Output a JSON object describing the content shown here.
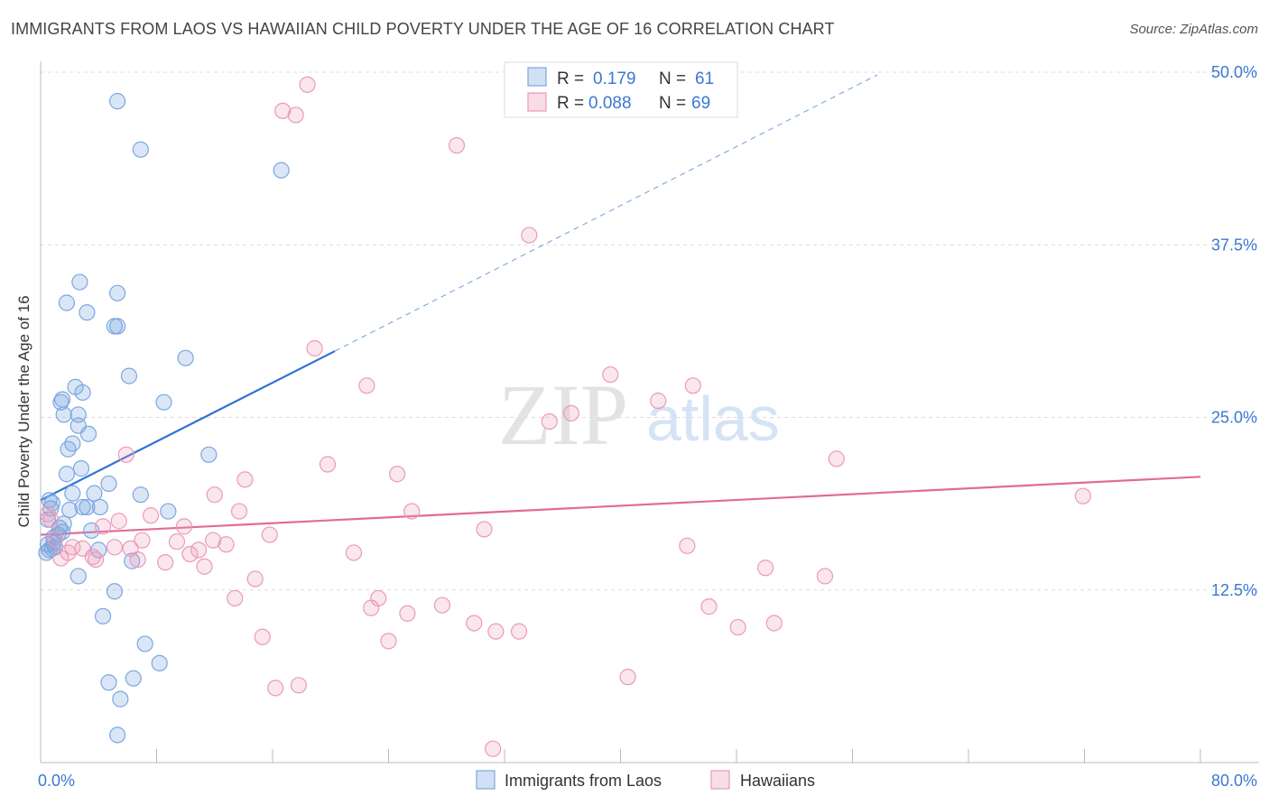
{
  "title": "IMMIGRANTS FROM LAOS VS HAWAIIAN CHILD POVERTY UNDER THE AGE OF 16 CORRELATION CHART",
  "source": "Source: ZipAtlas.com",
  "watermark": {
    "zip": "ZIP",
    "atlas": "atlas"
  },
  "colors": {
    "blue": "#7ba7e0",
    "blue_fill": "rgba(123,167,224,0.28)",
    "blue_line": "#2f74d0",
    "pink": "#eb9ab8",
    "pink_fill": "rgba(235,154,184,0.25)",
    "pink_line": "#e06c96",
    "value_text": "#3b78d0"
  },
  "legend_stats": [
    {
      "r_label": "R =",
      "r_value": "0.179",
      "n_label": "N =",
      "n_value": "61"
    },
    {
      "r_label": "R =",
      "r_value": "0.088",
      "n_label": "N =",
      "n_value": "69"
    }
  ],
  "chart_data": {
    "type": "scatter",
    "title": "IMMIGRANTS FROM LAOS VS HAWAIIAN CHILD POVERTY UNDER THE AGE OF 16 CORRELATION CHART",
    "xlabel": "",
    "ylabel": "Child Poverty Under the Age of 16",
    "xlim": [
      0,
      80
    ],
    "ylim": [
      0,
      50
    ],
    "x_tick_labels": [
      {
        "value": 0,
        "label": "0.0%"
      },
      {
        "value": 80,
        "label": "80.0%"
      }
    ],
    "y_tick_labels": [
      {
        "value": 12.5,
        "label": "12.5%"
      },
      {
        "value": 25,
        "label": "25.0%"
      },
      {
        "value": 37.5,
        "label": "37.5%"
      },
      {
        "value": 50,
        "label": "50.0%"
      }
    ],
    "grid": true,
    "legend_position": "bottom-center",
    "series": [
      {
        "name": "Immigrants from Laos",
        "color": "blue",
        "trend": {
          "x": [
            0,
            20.3
          ],
          "y": [
            19.0,
            29.8
          ],
          "dashed_to": [
            57.7,
            49.8
          ]
        },
        "points": [
          [
            0.4,
            15.2
          ],
          [
            0.6,
            15.4
          ],
          [
            0.5,
            15.8
          ],
          [
            0.8,
            15.5
          ],
          [
            1.0,
            15.6
          ],
          [
            0.9,
            16.3
          ],
          [
            0.5,
            17.6
          ],
          [
            0.7,
            18.4
          ],
          [
            0.6,
            19.0
          ],
          [
            0.8,
            18.8
          ],
          [
            1.3,
            17.0
          ],
          [
            1.5,
            16.7
          ],
          [
            1.2,
            16.5
          ],
          [
            1.6,
            17.3
          ],
          [
            2.0,
            18.3
          ],
          [
            1.8,
            20.9
          ],
          [
            2.2,
            19.5
          ],
          [
            2.9,
            18.5
          ],
          [
            3.2,
            18.5
          ],
          [
            4.1,
            18.5
          ],
          [
            3.7,
            19.5
          ],
          [
            4.7,
            20.2
          ],
          [
            2.8,
            21.3
          ],
          [
            1.9,
            22.7
          ],
          [
            2.2,
            23.1
          ],
          [
            3.3,
            23.8
          ],
          [
            2.6,
            24.4
          ],
          [
            2.6,
            25.2
          ],
          [
            1.6,
            25.2
          ],
          [
            1.4,
            26.1
          ],
          [
            1.5,
            26.3
          ],
          [
            2.9,
            26.8
          ],
          [
            2.4,
            27.2
          ],
          [
            6.1,
            28.0
          ],
          [
            10.0,
            29.3
          ],
          [
            6.9,
            19.4
          ],
          [
            8.8,
            18.2
          ],
          [
            5.3,
            34.0
          ],
          [
            5.3,
            31.6
          ],
          [
            5.1,
            31.6
          ],
          [
            3.2,
            32.6
          ],
          [
            1.8,
            33.3
          ],
          [
            2.7,
            34.8
          ],
          [
            5.3,
            47.9
          ],
          [
            6.9,
            44.4
          ],
          [
            16.6,
            42.9
          ],
          [
            8.5,
            26.1
          ],
          [
            11.6,
            22.3
          ],
          [
            3.5,
            16.8
          ],
          [
            4.0,
            15.4
          ],
          [
            6.3,
            14.6
          ],
          [
            2.6,
            13.5
          ],
          [
            5.1,
            12.4
          ],
          [
            4.3,
            10.6
          ],
          [
            7.2,
            8.6
          ],
          [
            8.2,
            7.2
          ],
          [
            4.7,
            5.8
          ],
          [
            6.4,
            6.1
          ],
          [
            5.5,
            4.6
          ],
          [
            5.3,
            2.0
          ],
          [
            0.9,
            15.9
          ]
        ]
      },
      {
        "name": "Hawaiians",
        "color": "pink",
        "trend": {
          "x": [
            0,
            80
          ],
          "y": [
            16.5,
            20.7
          ]
        },
        "points": [
          [
            0.5,
            18.0
          ],
          [
            0.7,
            17.6
          ],
          [
            1.0,
            16.2
          ],
          [
            1.4,
            14.8
          ],
          [
            1.9,
            15.2
          ],
          [
            2.2,
            15.6
          ],
          [
            2.9,
            15.5
          ],
          [
            3.6,
            14.9
          ],
          [
            3.8,
            14.7
          ],
          [
            4.3,
            17.1
          ],
          [
            5.1,
            15.6
          ],
          [
            5.4,
            17.5
          ],
          [
            6.2,
            15.5
          ],
          [
            6.7,
            14.7
          ],
          [
            7.0,
            16.1
          ],
          [
            7.6,
            17.9
          ],
          [
            8.6,
            14.5
          ],
          [
            9.4,
            16.0
          ],
          [
            9.9,
            17.1
          ],
          [
            10.3,
            15.1
          ],
          [
            10.9,
            15.4
          ],
          [
            11.3,
            14.2
          ],
          [
            11.9,
            16.1
          ],
          [
            12.8,
            15.8
          ],
          [
            13.4,
            11.9
          ],
          [
            13.7,
            18.2
          ],
          [
            14.1,
            20.5
          ],
          [
            14.8,
            13.3
          ],
          [
            15.3,
            9.1
          ],
          [
            15.8,
            16.5
          ],
          [
            16.2,
            5.4
          ],
          [
            17.8,
            5.6
          ],
          [
            18.9,
            30.0
          ],
          [
            19.8,
            21.6
          ],
          [
            21.6,
            15.2
          ],
          [
            22.5,
            27.3
          ],
          [
            22.8,
            11.2
          ],
          [
            23.3,
            11.9
          ],
          [
            24.0,
            8.8
          ],
          [
            24.6,
            20.9
          ],
          [
            25.3,
            10.8
          ],
          [
            25.6,
            18.2
          ],
          [
            27.7,
            11.4
          ],
          [
            29.9,
            10.1
          ],
          [
            30.6,
            16.9
          ],
          [
            31.4,
            9.5
          ],
          [
            33.0,
            9.5
          ],
          [
            31.2,
            1.0
          ],
          [
            35.1,
            24.7
          ],
          [
            36.6,
            25.3
          ],
          [
            39.3,
            28.1
          ],
          [
            40.5,
            6.2
          ],
          [
            42.6,
            26.2
          ],
          [
            44.6,
            15.7
          ],
          [
            45.0,
            27.3
          ],
          [
            46.1,
            11.3
          ],
          [
            48.1,
            9.8
          ],
          [
            50.0,
            14.1
          ],
          [
            50.6,
            10.1
          ],
          [
            54.1,
            13.5
          ],
          [
            54.9,
            22.0
          ],
          [
            71.9,
            19.3
          ],
          [
            18.4,
            49.1
          ],
          [
            16.7,
            47.2
          ],
          [
            17.6,
            46.9
          ],
          [
            28.7,
            44.7
          ],
          [
            33.7,
            38.2
          ],
          [
            5.9,
            22.3
          ],
          [
            12.0,
            19.4
          ]
        ]
      }
    ]
  }
}
